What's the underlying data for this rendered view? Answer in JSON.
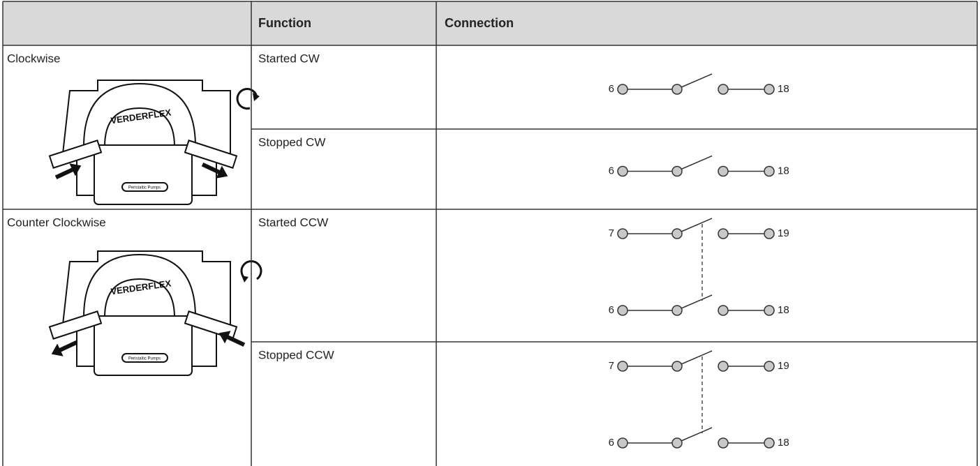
{
  "table": {
    "header": [
      "Function",
      "Connection"
    ],
    "groups": [
      {
        "label": "Clockwise",
        "pump_text": "VERDERFLEX",
        "badge": "Peristaltic Pumps",
        "rows": [
          {
            "function": "Started CW",
            "circuits": [
              {
                "left": "6",
                "right": "18"
              }
            ]
          },
          {
            "function": "Stopped CW",
            "circuits": [
              {
                "left": "6",
                "right": "18"
              }
            ]
          }
        ]
      },
      {
        "label": "Counter Clockwise",
        "pump_text": "VERDERFLEX",
        "badge": "Peristaltic Pumps",
        "rows": [
          {
            "function": "Started CCW",
            "circuits": [
              {
                "left": "7",
                "right": "19"
              },
              {
                "left": "6",
                "right": "18"
              }
            ]
          },
          {
            "function": "Stopped CCW",
            "circuits": [
              {
                "left": "7",
                "right": "19"
              },
              {
                "left": "6",
                "right": "18"
              }
            ]
          }
        ]
      }
    ]
  }
}
